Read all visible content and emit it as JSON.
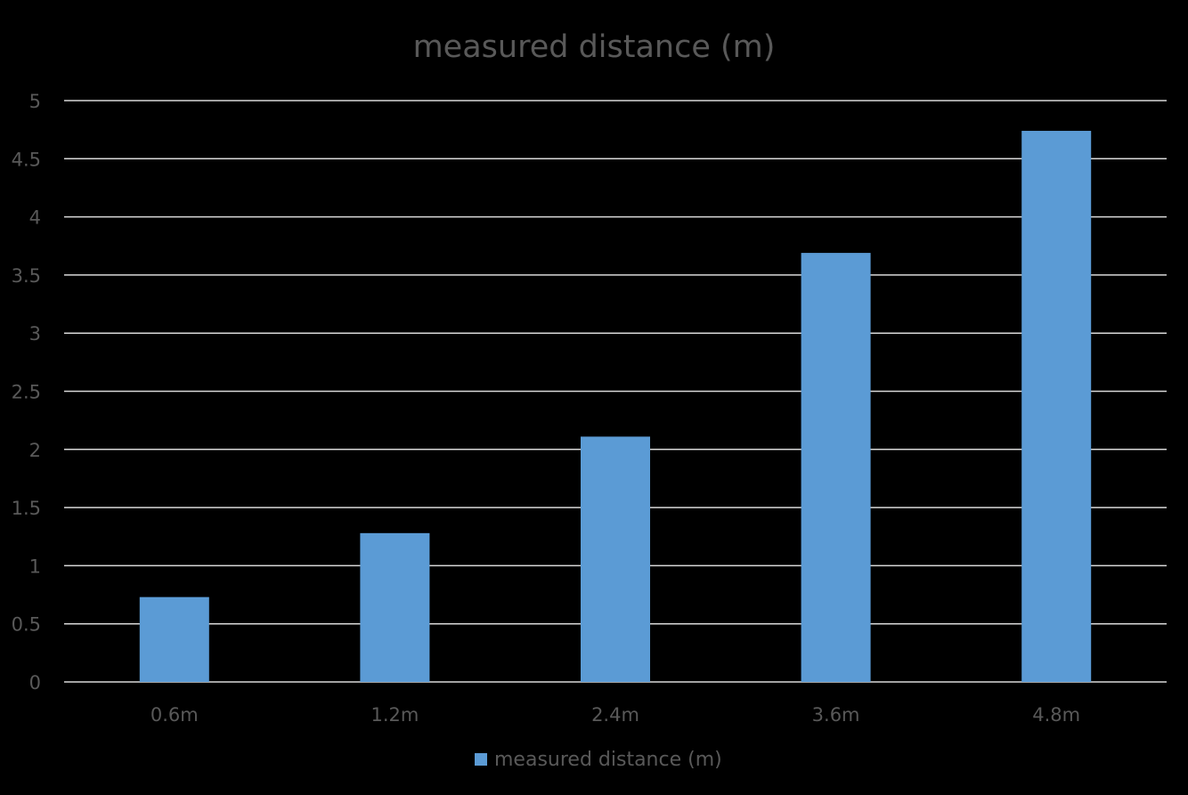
{
  "chart_data": {
    "type": "bar",
    "title": "measured distance (m)",
    "xlabel": "",
    "ylabel": "",
    "categories": [
      "0.6m",
      "1.2m",
      "2.4m",
      "3.6m",
      "4.8m"
    ],
    "series": [
      {
        "name": "measured distance (m)",
        "values": [
          0.73,
          1.28,
          2.11,
          3.69,
          4.74
        ],
        "color": "#5B9BD5"
      }
    ],
    "ylim": [
      0,
      5
    ],
    "yticks": [
      "0",
      "0.5",
      "1",
      "1.5",
      "2",
      "2.5",
      "3",
      "3.5",
      "4",
      "4.5",
      "5"
    ],
    "grid": true,
    "legend_position": "bottom"
  },
  "colors": {
    "background": "#000000",
    "gridline": "#D9D9D9",
    "axis_text": "#595959",
    "title_text": "#595959",
    "bar": "#5B9BD5"
  }
}
